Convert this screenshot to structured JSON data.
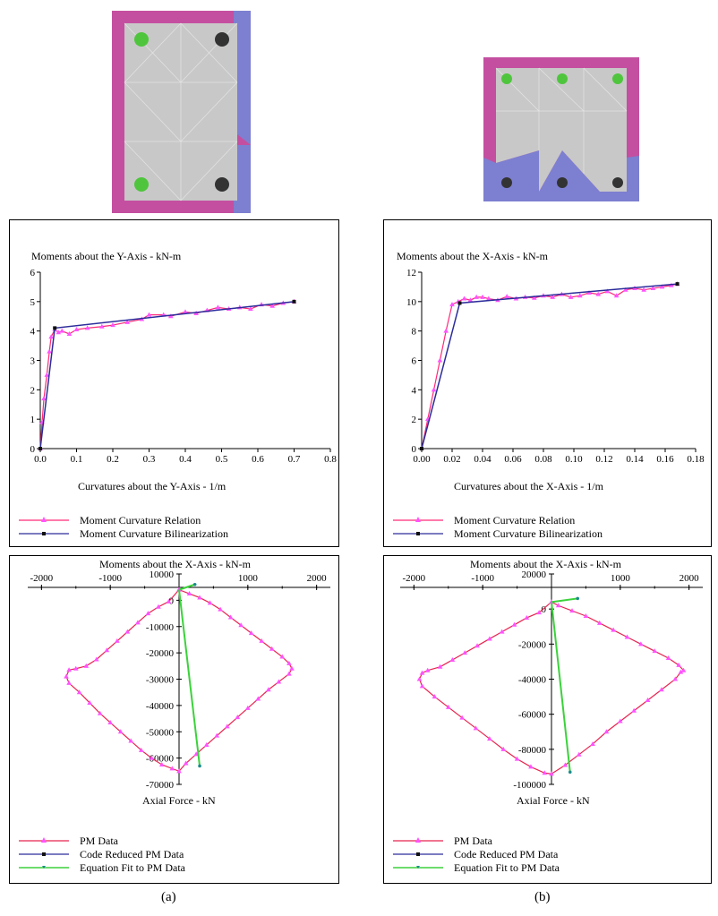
{
  "colors": {
    "section_face": "#c8c8c8",
    "section_cover_top": "#c44fa0",
    "section_compression": "#7d7fd0",
    "bar_green": "#4fc53e",
    "bar_black": "#333333",
    "relation": "#ff2a78",
    "relation_marker": "#ff52ff",
    "bilinear": "#2c2c9c",
    "pm_data": "#e8244f",
    "code_reduced": "#2c2c9c",
    "equation_fit": "#3bd23b"
  },
  "panels": {
    "a": {
      "caption": "(a)",
      "mc": {
        "title": "Moments about the Y-Axis - kN-m",
        "xlabel": "Curvatures about the Y-Axis - 1/m",
        "x_ticks": [
          "0.0",
          "0.1",
          "0.2",
          "0.3",
          "0.4",
          "0.5",
          "0.6",
          "0.7",
          "0.8"
        ],
        "y_ticks": [
          "0",
          "1",
          "2",
          "3",
          "4",
          "5",
          "6"
        ],
        "legend": [
          "Moment Curvature Relation",
          "Moment Curvature Bilinearization"
        ]
      },
      "pm": {
        "title": "Moments about the X-Axis - kN-m",
        "xlabel": "Axial Force - kN",
        "x_ticks": [
          "-2000",
          "-1000",
          "1000",
          "2000"
        ],
        "y_ticks": [
          "10000",
          "0",
          "-10000",
          "-20000",
          "-30000",
          "-40000",
          "-50000",
          "-60000",
          "-70000"
        ],
        "legend": [
          "PM Data",
          "Code Reduced PM Data",
          "Equation Fit to PM Data"
        ]
      }
    },
    "b": {
      "caption": "(b)",
      "mc": {
        "title": "Moments about the X-Axis - kN-m",
        "xlabel": "Curvatures about the X-Axis - 1/m",
        "x_ticks": [
          "0.00",
          "0.02",
          "0.04",
          "0.06",
          "0.08",
          "0.10",
          "0.12",
          "0.14",
          "0.16",
          "0.18"
        ],
        "y_ticks": [
          "0",
          "2",
          "4",
          "6",
          "8",
          "10",
          "12"
        ],
        "legend": [
          "Moment Curvature Relation",
          "Moment Curvature Bilinearization"
        ]
      },
      "pm": {
        "title": "Moments about the X-Axis - kN-m",
        "xlabel": "Axial Force - kN",
        "x_ticks": [
          "-2000",
          "-1000",
          "1000",
          "2000"
        ],
        "y_ticks": [
          "20000",
          "0",
          "-20000",
          "-40000",
          "-60000",
          "-80000",
          "-100000"
        ],
        "legend": [
          "PM Data",
          "Code Reduced PM Data",
          "Equation Fit to PM Data"
        ]
      }
    }
  },
  "chart_data": [
    {
      "id": "a-mc",
      "type": "line",
      "title": "Moments about the Y-Axis - kN-m",
      "xlabel": "Curvatures about the Y-Axis - 1/m",
      "ylabel": "",
      "xlim": [
        0,
        0.8
      ],
      "ylim": [
        0,
        6
      ],
      "grid": false,
      "legend": "bottom",
      "series": [
        {
          "name": "Moment Curvature Relation",
          "x": [
            0,
            0.005,
            0.01,
            0.018,
            0.025,
            0.03,
            0.04,
            0.05,
            0.06,
            0.08,
            0.1,
            0.13,
            0.17,
            0.2,
            0.24,
            0.28,
            0.3,
            0.34,
            0.36,
            0.4,
            0.43,
            0.46,
            0.49,
            0.52,
            0.55,
            0.58,
            0.61,
            0.64,
            0.67,
            0.7
          ],
          "y": [
            0,
            0.9,
            1.7,
            2.5,
            3.3,
            3.8,
            4.05,
            3.95,
            4.0,
            3.9,
            4.05,
            4.1,
            4.15,
            4.2,
            4.3,
            4.4,
            4.55,
            4.55,
            4.5,
            4.65,
            4.6,
            4.7,
            4.8,
            4.75,
            4.8,
            4.75,
            4.9,
            4.85,
            4.95,
            5.0
          ]
        },
        {
          "name": "Moment Curvature Bilinearization",
          "x": [
            0,
            0.04,
            0.7
          ],
          "y": [
            0,
            4.1,
            5.0
          ]
        }
      ]
    },
    {
      "id": "b-mc",
      "type": "line",
      "title": "Moments about the X-Axis - kN-m",
      "xlabel": "Curvatures about the X-Axis - 1/m",
      "ylabel": "",
      "xlim": [
        0,
        0.18
      ],
      "ylim": [
        0,
        12
      ],
      "grid": false,
      "legend": "bottom",
      "series": [
        {
          "name": "Moment Curvature Relation",
          "x": [
            0,
            0.004,
            0.008,
            0.012,
            0.016,
            0.02,
            0.024,
            0.028,
            0.032,
            0.036,
            0.04,
            0.044,
            0.05,
            0.056,
            0.062,
            0.068,
            0.074,
            0.08,
            0.086,
            0.092,
            0.098,
            0.104,
            0.11,
            0.116,
            0.122,
            0.128,
            0.134,
            0.14,
            0.146,
            0.152,
            0.158,
            0.164,
            0.168
          ],
          "y": [
            0,
            2.0,
            4.0,
            6.0,
            8.0,
            9.8,
            10.0,
            10.2,
            10.1,
            10.3,
            10.3,
            10.2,
            10.1,
            10.35,
            10.2,
            10.3,
            10.25,
            10.4,
            10.3,
            10.5,
            10.3,
            10.4,
            10.6,
            10.5,
            10.7,
            10.4,
            10.8,
            10.9,
            10.8,
            10.9,
            11.0,
            11.1,
            11.2
          ]
        },
        {
          "name": "Moment Curvature Bilinearization",
          "x": [
            0,
            0.025,
            0.168
          ],
          "y": [
            0,
            9.9,
            11.2
          ]
        }
      ]
    },
    {
      "id": "a-pm",
      "type": "line",
      "title": "Moments about the X-Axis - kN-m",
      "xlabel": "Axial Force - kN",
      "ylabel": "",
      "xlim": [
        -2200,
        2200
      ],
      "ylim": [
        -70000,
        10000
      ],
      "grid": false,
      "legend": "bottom",
      "series": [
        {
          "name": "PM Data",
          "x": [
            0,
            -150,
            -300,
            -450,
            -600,
            -750,
            -900,
            -1050,
            -1200,
            -1350,
            -1500,
            -1600,
            -1640,
            -1600,
            -1450,
            -1300,
            -1150,
            -1000,
            -850,
            -700,
            -550,
            -400,
            -250,
            -100,
            0,
            100,
            250,
            400,
            550,
            700,
            850,
            1000,
            1150,
            1300,
            1450,
            1600,
            1640,
            1600,
            1500,
            1350,
            1200,
            1050,
            900,
            750,
            600,
            450,
            300,
            150,
            0
          ],
          "y": [
            4000,
            -500,
            -2500,
            -5000,
            -8500,
            -12000,
            -15500,
            -19000,
            -22500,
            -25000,
            -26000,
            -26500,
            -29000,
            -31500,
            -35000,
            -39000,
            -43000,
            -46500,
            -50000,
            -53500,
            -57000,
            -60000,
            -62500,
            -64000,
            -65000,
            -62000,
            -58500,
            -55000,
            -51500,
            -48000,
            -44500,
            -41000,
            -37500,
            -34000,
            -31000,
            -28000,
            -26000,
            -24000,
            -21500,
            -18500,
            -15500,
            -12500,
            -9500,
            -6500,
            -3500,
            -1000,
            1000,
            2500,
            4000
          ]
        },
        {
          "name": "Code Reduced PM Data",
          "x": [
            0,
            230
          ],
          "y": [
            4000,
            6000
          ]
        },
        {
          "name": "Equation Fit to PM Data",
          "x": [
            0,
            230,
            0,
            300
          ],
          "y": [
            4000,
            6000,
            4000,
            -63000
          ]
        }
      ]
    },
    {
      "id": "b-pm",
      "type": "line",
      "title": "Moments about the X-Axis - kN-m",
      "xlabel": "Axial Force - kN",
      "ylabel": "",
      "xlim": [
        -2200,
        2200
      ],
      "ylim": [
        -100000,
        20000
      ],
      "grid": false,
      "legend": "bottom",
      "series": [
        {
          "name": "PM Data",
          "x": [
            0,
            -180,
            -360,
            -540,
            -720,
            -900,
            -1080,
            -1260,
            -1440,
            -1620,
            -1800,
            -1880,
            -1920,
            -1880,
            -1700,
            -1500,
            -1300,
            -1100,
            -900,
            -700,
            -500,
            -300,
            -100,
            0,
            200,
            400,
            600,
            800,
            1000,
            1200,
            1400,
            1600,
            1800,
            1880,
            1920,
            1850,
            1700,
            1500,
            1300,
            1100,
            900,
            700,
            500,
            300,
            100,
            0
          ],
          "y": [
            4000,
            -2000,
            -5000,
            -9000,
            -13000,
            -17000,
            -21000,
            -25000,
            -29000,
            -33000,
            -35000,
            -36500,
            -40000,
            -44000,
            -50000,
            -56000,
            -62000,
            -68000,
            -74000,
            -80000,
            -85500,
            -90000,
            -93500,
            -94000,
            -89000,
            -83000,
            -77000,
            -70000,
            -64000,
            -58000,
            -52000,
            -46000,
            -40000,
            -36000,
            -35000,
            -32000,
            -28000,
            -24000,
            -20000,
            -16000,
            -12000,
            -8000,
            -4000,
            -1000,
            2000,
            4000
          ]
        },
        {
          "name": "Code Reduced PM Data",
          "x": [
            0,
            380
          ],
          "y": [
            4000,
            6000
          ]
        },
        {
          "name": "Equation Fit to PM Data",
          "x": [
            0,
            380,
            0,
            270
          ],
          "y": [
            4000,
            6000,
            4000,
            -93000
          ]
        }
      ]
    }
  ]
}
